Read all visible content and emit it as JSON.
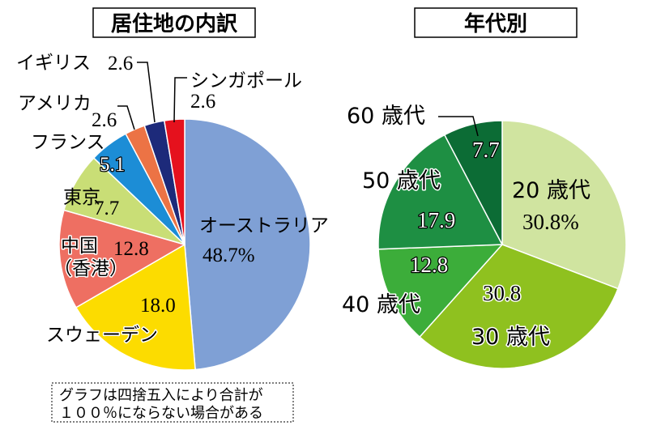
{
  "chart_data": [
    {
      "type": "pie",
      "title": "居住地の内訳",
      "slices": [
        {
          "label": "オーストラリア",
          "value": 48.7,
          "value_label": "48.7%",
          "color": "#7fa0d5"
        },
        {
          "label": "スウェーデン",
          "value": 18.0,
          "value_label": "18.0",
          "color": "#fcdc00"
        },
        {
          "label": [
            "中国",
            "（香港）"
          ],
          "value": 12.8,
          "value_label": "12.8",
          "color": "#ee6f62"
        },
        {
          "label": "東京",
          "value": 7.7,
          "value_label": "7.7",
          "color": "#c9de76"
        },
        {
          "label": "フランス",
          "value": 5.1,
          "value_label": "5.1",
          "color": "#1c8dd6"
        },
        {
          "label": "アメリカ",
          "value": 2.6,
          "value_label": "2.6",
          "color": "#ec7345"
        },
        {
          "label": "イギリス",
          "value": 2.6,
          "value_label": "2.6",
          "color": "#1d2a7a"
        },
        {
          "label": "シンガポール",
          "value": 2.6,
          "value_label": "2.6",
          "color": "#e5111d"
        }
      ]
    },
    {
      "type": "pie",
      "title": "年代別",
      "slices": [
        {
          "label": "20 歳代",
          "value": 30.8,
          "value_label": "30.8%",
          "color": "#d0e4a0"
        },
        {
          "label": "30 歳代",
          "value": 30.8,
          "value_label": "30.8",
          "color": "#8fc11f"
        },
        {
          "label": "40 歳代",
          "value": 12.8,
          "value_label": "12.8",
          "color": "#3cad3a"
        },
        {
          "label": "50 歳代",
          "value": 17.9,
          "value_label": "17.9",
          "color": "#1e8f43"
        },
        {
          "label": "60 歳代",
          "value": 7.7,
          "value_label": "7.7",
          "color": "#0c6c35"
        }
      ]
    }
  ],
  "note": {
    "lines": [
      "グラフは四捨五入により合計が",
      "１００％にならない場合がある"
    ]
  }
}
